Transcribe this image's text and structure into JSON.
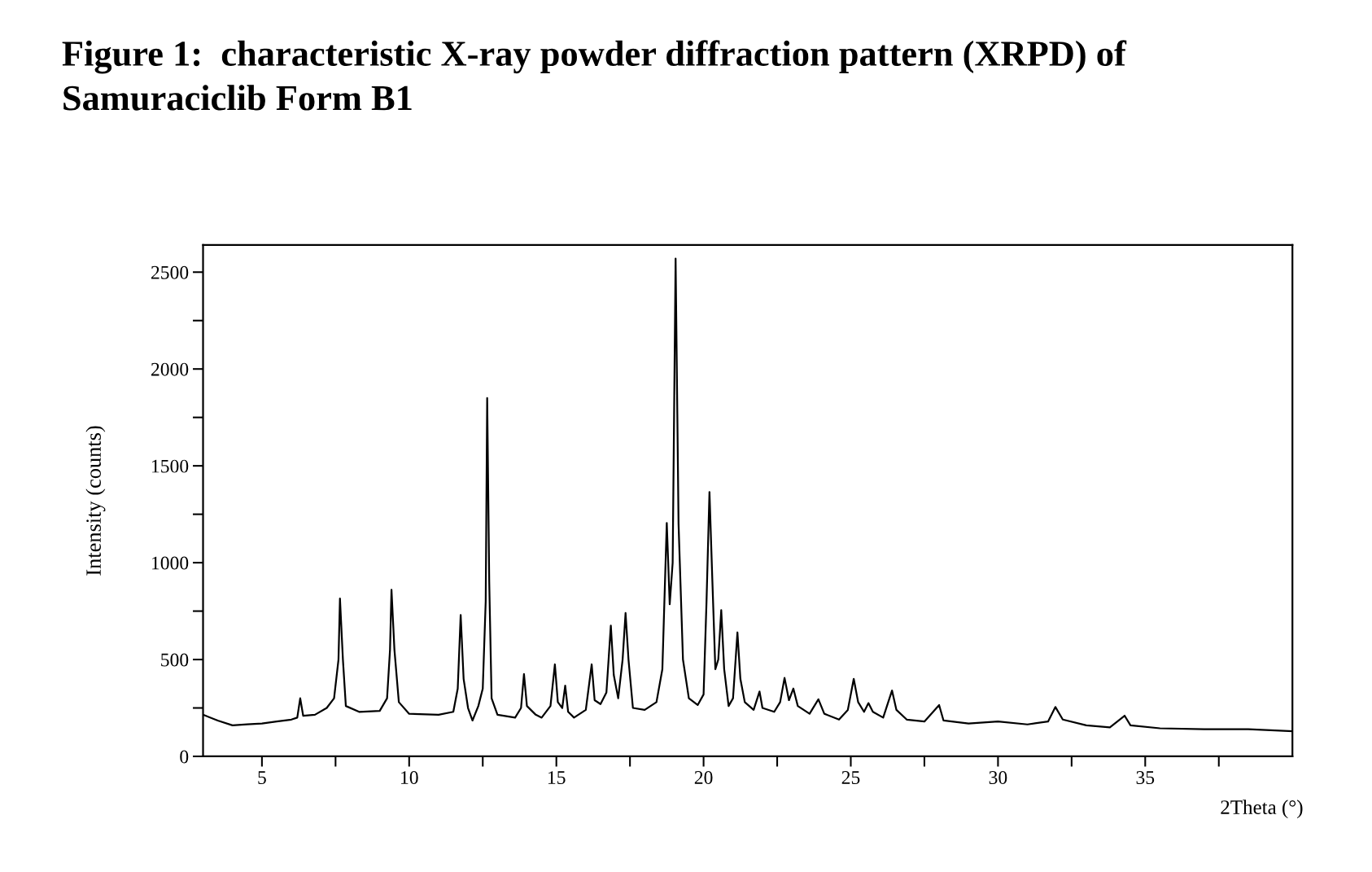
{
  "chart_data": {
    "type": "line",
    "title": "Figure 1:  characteristic X-ray powder diffraction pattern (XRPD) of\nSamuraciclib Form B1",
    "xlabel": "2Theta (°)",
    "ylabel": "Intensity (counts)",
    "xlim": [
      3,
      40
    ],
    "ylim": [
      0,
      2640
    ],
    "xticks": [
      5,
      {
        "value": 7.5,
        "label": null
      },
      10,
      {
        "value": 12.5,
        "label": null
      },
      15,
      {
        "value": 17.5,
        "label": null
      },
      20,
      {
        "value": 22.5,
        "label": null
      },
      25,
      {
        "value": 27.5,
        "label": null
      },
      30,
      {
        "value": 32.5,
        "label": null
      },
      35,
      {
        "value": 37.5,
        "label": null
      }
    ],
    "yticks": [
      0,
      {
        "value": 250,
        "label": null
      },
      500,
      {
        "value": 750,
        "label": null
      },
      1000,
      {
        "value": 1250,
        "label": null
      },
      1500,
      {
        "value": 1750,
        "label": null
      },
      2000,
      {
        "value": 2250,
        "label": null
      },
      2500
    ],
    "marker": "none",
    "line_style": "solid",
    "series": [
      {
        "color": "#000000",
        "x": [
          3.0,
          3.5,
          4.0,
          4.5,
          5.0,
          5.5,
          6.0,
          6.2,
          6.3,
          6.4,
          6.8,
          7.2,
          7.45,
          7.6,
          7.65,
          7.75,
          7.85,
          8.3,
          9.0,
          9.25,
          9.35,
          9.4,
          9.5,
          9.65,
          10.0,
          11.0,
          11.5,
          11.65,
          11.75,
          11.85,
          12.0,
          12.15,
          12.35,
          12.5,
          12.6,
          12.65,
          12.72,
          12.8,
          13.0,
          13.6,
          13.8,
          13.9,
          14.0,
          14.3,
          14.5,
          14.8,
          14.95,
          15.05,
          15.2,
          15.3,
          15.4,
          15.6,
          16.0,
          16.2,
          16.3,
          16.5,
          16.7,
          16.85,
          16.95,
          17.1,
          17.25,
          17.35,
          17.45,
          17.6,
          18.0,
          18.4,
          18.6,
          18.75,
          18.85,
          18.95,
          19.05,
          19.15,
          19.3,
          19.5,
          19.8,
          20.0,
          20.1,
          20.2,
          20.3,
          20.4,
          20.5,
          20.6,
          20.7,
          20.85,
          21.0,
          21.15,
          21.25,
          21.4,
          21.7,
          21.9,
          22.0,
          22.4,
          22.6,
          22.75,
          22.9,
          23.05,
          23.2,
          23.6,
          23.9,
          24.1,
          24.6,
          24.9,
          25.1,
          25.25,
          25.45,
          25.6,
          25.75,
          26.1,
          26.4,
          26.55,
          26.9,
          27.5,
          28.0,
          28.15,
          29.0,
          30.0,
          31.0,
          31.7,
          31.95,
          32.2,
          33.0,
          33.8,
          34.3,
          34.5,
          35.5,
          37.0,
          38.5,
          40.0
        ],
        "values": [
          215,
          185,
          160,
          165,
          170,
          180,
          190,
          200,
          300,
          210,
          215,
          250,
          300,
          500,
          815,
          500,
          260,
          230,
          235,
          300,
          550,
          860,
          550,
          280,
          220,
          215,
          230,
          350,
          730,
          400,
          250,
          185,
          260,
          350,
          800,
          1850,
          900,
          300,
          215,
          200,
          250,
          425,
          260,
          215,
          200,
          260,
          475,
          280,
          250,
          365,
          230,
          200,
          240,
          475,
          290,
          270,
          330,
          675,
          420,
          300,
          500,
          740,
          500,
          250,
          240,
          280,
          450,
          1205,
          785,
          1000,
          2570,
          1200,
          500,
          300,
          265,
          320,
          800,
          1365,
          900,
          450,
          500,
          755,
          450,
          260,
          300,
          640,
          400,
          280,
          240,
          335,
          250,
          230,
          280,
          405,
          290,
          350,
          260,
          220,
          295,
          220,
          190,
          240,
          400,
          280,
          230,
          275,
          230,
          200,
          340,
          240,
          190,
          180,
          265,
          185,
          170,
          180,
          165,
          180,
          255,
          190,
          160,
          150,
          210,
          160,
          145,
          140,
          140,
          130
        ]
      }
    ]
  }
}
